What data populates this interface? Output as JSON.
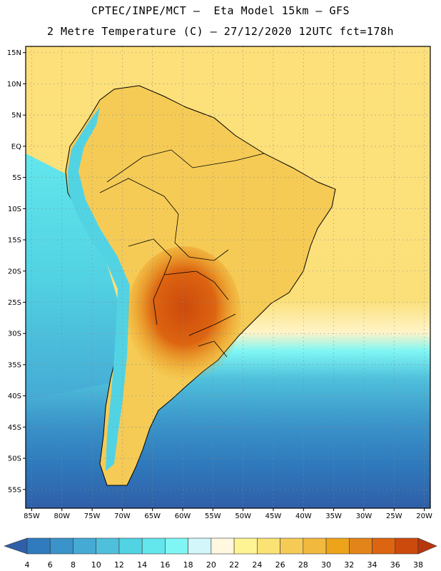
{
  "header": {
    "line1": "CPTEC/INPE/MCT –  Eta Model 15km – GFS",
    "line2": "2 Metre Temperature (C) – 27/12/2020 12UTC fct=178h"
  },
  "axes": {
    "lat_labels": [
      "15N",
      "10N",
      "5N",
      "EQ",
      "5S",
      "10S",
      "15S",
      "20S",
      "25S",
      "30S",
      "35S",
      "40S",
      "45S",
      "50S",
      "55S"
    ],
    "lon_labels": [
      "85W",
      "80W",
      "75W",
      "70W",
      "65W",
      "60W",
      "55W",
      "50W",
      "45W",
      "40W",
      "35W",
      "30W",
      "25W",
      "20W"
    ],
    "lat_range": [
      -58,
      16
    ],
    "lon_range": [
      -86,
      -19
    ],
    "grid": "dotted"
  },
  "colorbar": {
    "labels": [
      "4",
      "6",
      "8",
      "10",
      "12",
      "14",
      "16",
      "18",
      "20",
      "22",
      "24",
      "26",
      "28",
      "30",
      "32",
      "34",
      "36",
      "38"
    ],
    "colors": [
      "#2f5fa8",
      "#2f7bbd",
      "#3a93c9",
      "#45aad4",
      "#4fc0dc",
      "#52d3e3",
      "#63e6ec",
      "#7ff6f4",
      "#d2f6fa",
      "#fff7df",
      "#fff494",
      "#fbe274",
      "#f5cb56",
      "#f2b93f",
      "#eda41a",
      "#e3841a",
      "#dd6410",
      "#cc4a0c",
      "#b8360e"
    ]
  },
  "map_colors": {
    "ocean_south": "#2f5fa8",
    "ocean_mid": "#52d3e3",
    "ocean_north": "#fbe07a",
    "land": "#f5cb56",
    "andes": "#52d3e3",
    "hot": "#dd6410"
  }
}
